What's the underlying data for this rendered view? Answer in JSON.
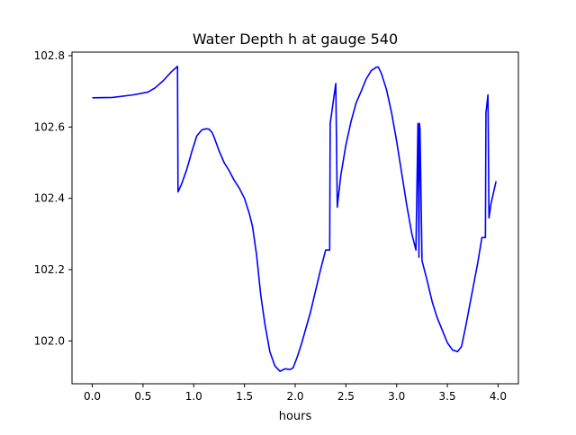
{
  "chart_data": {
    "type": "line",
    "title": "Water Depth h at gauge 540",
    "xlabel": "hours",
    "ylabel": "",
    "xlim": [
      -0.2,
      4.2
    ],
    "ylim": [
      101.88,
      102.81
    ],
    "x_ticks": [
      0.0,
      0.5,
      1.0,
      1.5,
      2.0,
      2.5,
      3.0,
      3.5,
      4.0
    ],
    "x_tick_labels": [
      "0.0",
      "0.5",
      "1.0",
      "1.5",
      "2.0",
      "2.5",
      "3.0",
      "3.5",
      "4.0"
    ],
    "y_ticks": [
      102.0,
      102.2,
      102.4,
      102.6,
      102.8
    ],
    "y_tick_labels": [
      "102.0",
      "102.2",
      "102.4",
      "102.6",
      "102.8"
    ],
    "grid": false,
    "legend": "none",
    "series": [
      {
        "name": "",
        "color": "#0000ff",
        "x": [
          0.0,
          0.2,
          0.4,
          0.55,
          0.62,
          0.7,
          0.78,
          0.84,
          0.845,
          0.88,
          0.93,
          0.98,
          1.03,
          1.08,
          1.12,
          1.15,
          1.18,
          1.2,
          1.25,
          1.3,
          1.35,
          1.4,
          1.45,
          1.5,
          1.55,
          1.58,
          1.62,
          1.66,
          1.7,
          1.75,
          1.8,
          1.85,
          1.9,
          1.95,
          1.98,
          2.02,
          2.06,
          2.1,
          2.15,
          2.2,
          2.25,
          2.3,
          2.34,
          2.345,
          2.4,
          2.415,
          2.42,
          2.45,
          2.5,
          2.55,
          2.6,
          2.65,
          2.7,
          2.75,
          2.8,
          2.82,
          2.85,
          2.9,
          2.95,
          3.0,
          3.05,
          3.1,
          3.15,
          3.19,
          3.21,
          3.212,
          3.22,
          3.225,
          3.23,
          3.25,
          3.3,
          3.35,
          3.4,
          3.45,
          3.5,
          3.55,
          3.6,
          3.64,
          3.68,
          3.72,
          3.76,
          3.8,
          3.84,
          3.875,
          3.88,
          3.9,
          3.91,
          3.93,
          3.95,
          3.98
        ],
        "y": [
          102.682,
          102.683,
          102.69,
          102.698,
          102.71,
          102.73,
          102.755,
          102.77,
          102.418,
          102.44,
          102.48,
          102.53,
          102.575,
          102.592,
          102.595,
          102.594,
          102.585,
          102.572,
          102.533,
          102.5,
          102.477,
          102.45,
          102.428,
          102.4,
          102.355,
          102.32,
          102.24,
          102.13,
          102.05,
          101.97,
          101.93,
          101.915,
          101.922,
          101.92,
          101.925,
          101.955,
          101.99,
          102.03,
          102.08,
          102.14,
          102.2,
          102.255,
          102.255,
          102.61,
          102.722,
          102.375,
          102.39,
          102.465,
          102.55,
          102.615,
          102.667,
          102.7,
          102.735,
          102.758,
          102.768,
          102.768,
          102.75,
          102.705,
          102.64,
          102.56,
          102.47,
          102.38,
          102.3,
          102.255,
          102.61,
          102.595,
          102.235,
          102.61,
          102.595,
          102.225,
          102.17,
          102.11,
          102.065,
          102.03,
          101.995,
          101.975,
          101.97,
          101.985,
          102.04,
          102.1,
          102.16,
          102.22,
          102.29,
          102.29,
          102.64,
          102.69,
          102.345,
          102.385,
          102.41,
          102.448
        ]
      }
    ]
  }
}
